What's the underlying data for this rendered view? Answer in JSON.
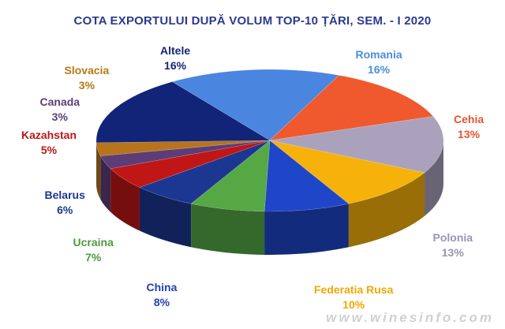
{
  "chart_data": {
    "type": "pie",
    "title": "COTA EXPORTULUI DUPĂ VOLUM TOP-10 ȚĂRI, SEM. - I 2020",
    "slices": [
      {
        "label": "Romania",
        "pct": "16%",
        "value": 16,
        "color": "#4a86e0",
        "label_color": "#4a8fdc"
      },
      {
        "label": "Cehia",
        "pct": "13%",
        "value": 13,
        "color": "#f0582e",
        "label_color": "#e8542a"
      },
      {
        "label": "Polonia",
        "pct": "13%",
        "value": 13,
        "color": "#aaa2bd",
        "label_color": "#9b93b5"
      },
      {
        "label": "Federatia Rusa",
        "pct": "10%",
        "value": 10,
        "color": "#f6b20a",
        "label_color": "#f0a800"
      },
      {
        "label": "China",
        "pct": "8%",
        "value": 8,
        "color": "#1f45c8",
        "label_color": "#2340b8"
      },
      {
        "label": "Ucraina",
        "pct": "7%",
        "value": 7,
        "color": "#56a845",
        "label_color": "#4d9a3c"
      },
      {
        "label": "Belarus",
        "pct": "6%",
        "value": 6,
        "color": "#1b3791",
        "label_color": "#1b3791"
      },
      {
        "label": "Kazahstan",
        "pct": "5%",
        "value": 5,
        "color": "#c01616",
        "label_color": "#b81818"
      },
      {
        "label": "Canada",
        "pct": "3%",
        "value": 3,
        "color": "#5c3d78",
        "label_color": "#5c3d78"
      },
      {
        "label": "Slovacia",
        "pct": "3%",
        "value": 3,
        "color": "#b8741c",
        "label_color": "#b57a14"
      },
      {
        "label": "Altele",
        "pct": "16%",
        "value": 16,
        "color": "#122478",
        "label_color": "#15257a"
      }
    ]
  },
  "watermark": "www.winesinfo.com"
}
